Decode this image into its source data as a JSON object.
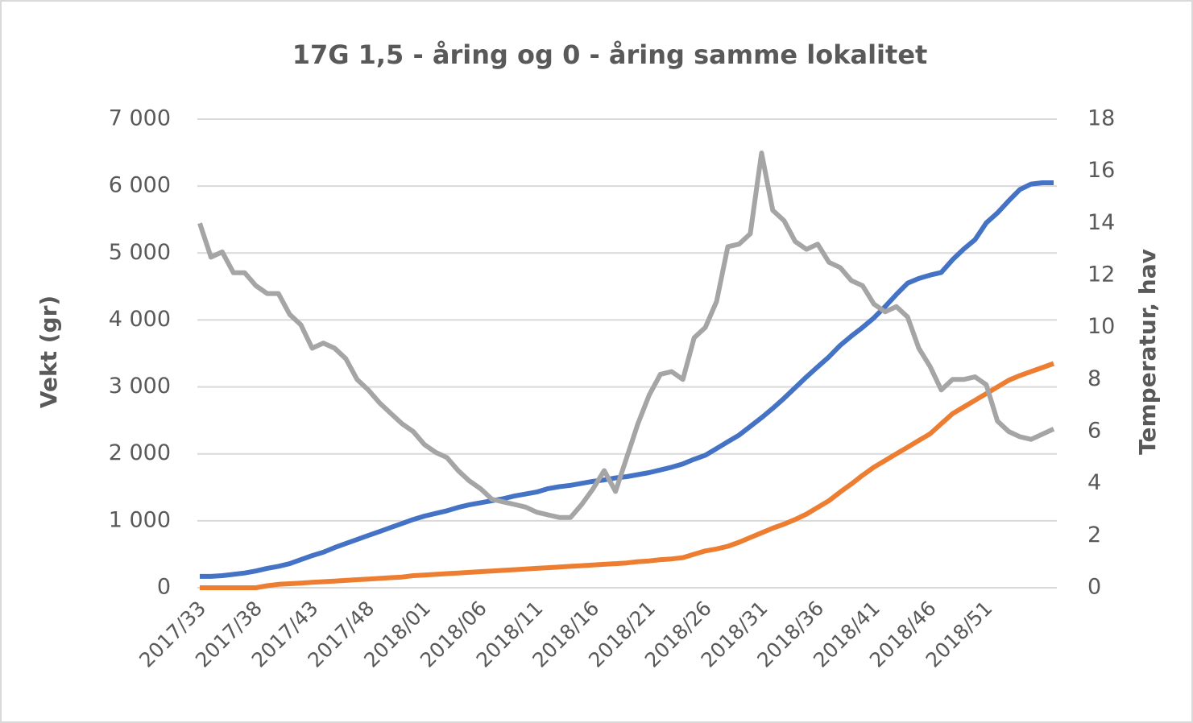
{
  "chart_data": {
    "type": "line",
    "title": "17G 1,5 - åring og 0 - åring samme lokalitet",
    "y_label": "Vekt (gr)",
    "y2_label": "Temperatur, hav",
    "categories": [
      "2017/33",
      null,
      null,
      null,
      null,
      "2017/38",
      null,
      null,
      null,
      null,
      "2017/43",
      null,
      null,
      null,
      null,
      "2017/48",
      null,
      null,
      null,
      null,
      "2018/01",
      null,
      null,
      null,
      null,
      "2018/06",
      null,
      null,
      null,
      null,
      "2018/11",
      null,
      null,
      null,
      null,
      "2018/16",
      null,
      null,
      null,
      null,
      "2018/21",
      null,
      null,
      null,
      null,
      "2018/26",
      null,
      null,
      null,
      null,
      "2018/31",
      null,
      null,
      null,
      null,
      "2018/36",
      null,
      null,
      null,
      null,
      "2018/41",
      null,
      null,
      null,
      null,
      "2018/46",
      null,
      null,
      null,
      null,
      "2018/51",
      null,
      null,
      null,
      null,
      null,
      null
    ],
    "ylim": [
      0,
      7000
    ],
    "yticks": [
      0,
      {
        "value": 1000,
        "label": "1 000"
      },
      {
        "value": 2000,
        "label": "2 000"
      },
      {
        "value": 3000,
        "label": "3 000"
      },
      {
        "value": 4000,
        "label": "4 000"
      },
      {
        "value": 5000,
        "label": "5 000"
      },
      {
        "value": 6000,
        "label": "6 000"
      },
      {
        "value": 7000,
        "label": "7 000"
      }
    ],
    "y2lim": [
      0,
      18
    ],
    "y2ticks": [
      0,
      2,
      4,
      6,
      8,
      10,
      12,
      14,
      16,
      18
    ],
    "grid": true,
    "series": [
      {
        "color": "#4472c4",
        "values": [
          170,
          170,
          180,
          200,
          220,
          250,
          290,
          320,
          360,
          420,
          480,
          530,
          600,
          660,
          720,
          780,
          840,
          900,
          960,
          1020,
          1070,
          1110,
          1150,
          1200,
          1240,
          1270,
          1300,
          1330,
          1370,
          1400,
          1430,
          1480,
          1510,
          1530,
          1560,
          1590,
          1610,
          1640,
          1660,
          1690,
          1720,
          1760,
          1800,
          1850,
          1920,
          1980,
          2080,
          2180,
          2280,
          2410,
          2540,
          2680,
          2830,
          2990,
          3150,
          3300,
          3450,
          3620,
          3760,
          3890,
          4030,
          4200,
          4380,
          4550,
          4620,
          4670,
          4710,
          4900,
          5060,
          5200,
          5450,
          5600,
          5780,
          5950,
          6030,
          6050,
          6050
        ]
      },
      {
        "color": "#ed7d31",
        "values": [
          0,
          0,
          0,
          0,
          0,
          0,
          30,
          50,
          60,
          70,
          80,
          90,
          100,
          110,
          120,
          130,
          140,
          150,
          160,
          180,
          190,
          200,
          210,
          220,
          230,
          240,
          250,
          260,
          270,
          280,
          290,
          300,
          310,
          320,
          330,
          340,
          350,
          360,
          370,
          390,
          400,
          420,
          430,
          450,
          500,
          550,
          580,
          620,
          680,
          750,
          820,
          890,
          950,
          1020,
          1100,
          1200,
          1300,
          1430,
          1550,
          1680,
          1800,
          1900,
          2000,
          2100,
          2200,
          2300,
          2450,
          2600,
          2700,
          2800,
          2900,
          3000,
          3100,
          3170,
          3230,
          3290,
          3350
        ]
      },
      {
        "color": "#a5a5a5",
        "axis": "y2",
        "values": [
          14.0,
          12.7,
          12.9,
          12.1,
          12.1,
          11.6,
          11.3,
          11.3,
          10.5,
          10.1,
          9.2,
          9.4,
          9.2,
          8.8,
          8.0,
          7.6,
          7.1,
          6.7,
          6.3,
          6.0,
          5.5,
          5.2,
          5.0,
          4.5,
          4.1,
          3.8,
          3.4,
          3.3,
          3.2,
          3.1,
          2.9,
          2.8,
          2.7,
          2.7,
          3.2,
          3.8,
          4.5,
          3.7,
          5.0,
          6.3,
          7.4,
          8.2,
          8.3,
          8.0,
          9.6,
          10.0,
          11.0,
          13.1,
          13.2,
          13.6,
          16.7,
          14.5,
          14.1,
          13.3,
          13.0,
          13.2,
          12.5,
          12.3,
          11.8,
          11.6,
          10.9,
          10.6,
          10.8,
          10.4,
          9.2,
          8.5,
          7.6,
          8.0,
          8.0,
          8.1,
          7.8,
          6.4,
          6.0,
          5.8,
          5.7,
          5.9,
          6.1
        ]
      }
    ]
  }
}
